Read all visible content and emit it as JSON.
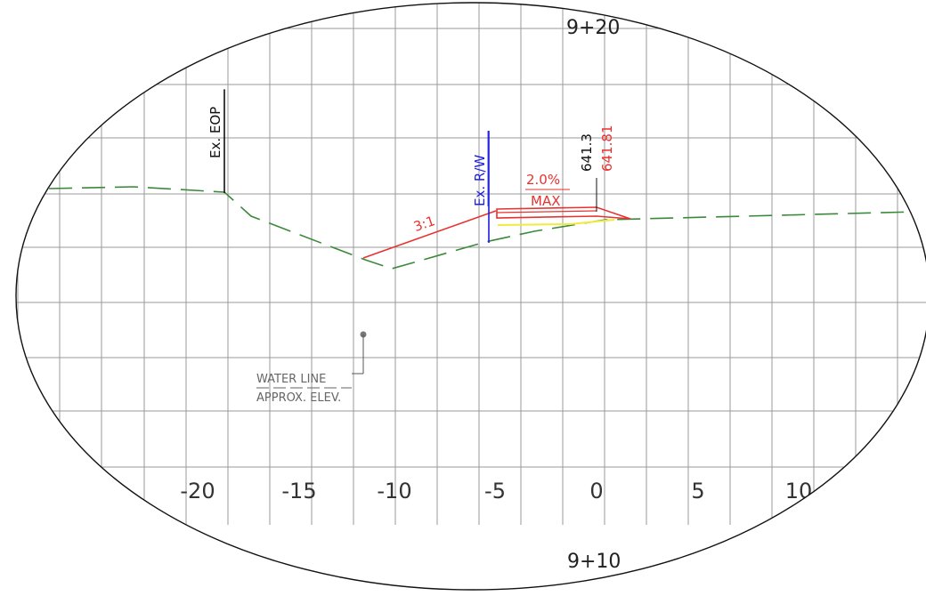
{
  "drawing": {
    "station_top": "9+20",
    "station_bottom": "9+10",
    "x_axis_labels": [
      "-20",
      "-15",
      "-10",
      "-5",
      "0",
      "5",
      "10"
    ],
    "labels": {
      "ex_eop": "Ex. EOP",
      "ex_rw": "Ex. R/W",
      "slope": "3:1",
      "cross_slope": "2.0%",
      "cross_slope_note": "MAX",
      "elev_existing": "641.3",
      "elev_proposed": "641.81",
      "water_line_1": "WATER LINE",
      "water_line_2": "APPROX. ELEV."
    },
    "colors": {
      "grid": "#9a9a9a",
      "existing_ground": "#3a8a3a",
      "proposed": "#e8322f",
      "right_of_way": "#1d1de0",
      "subgrade": "#f2ea40",
      "annotation": "#111111"
    }
  }
}
